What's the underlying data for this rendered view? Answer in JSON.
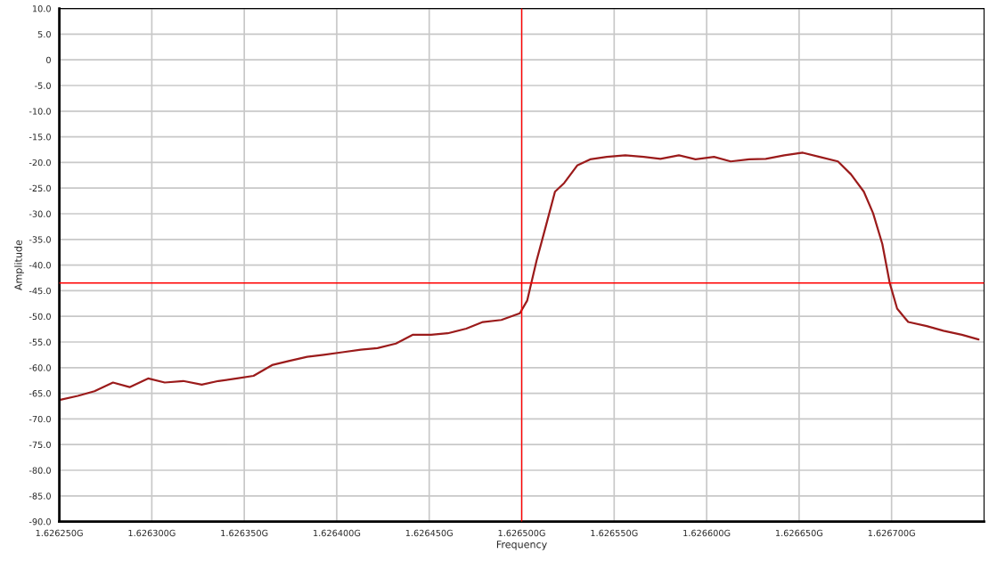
{
  "chart_data": {
    "type": "line",
    "xlabel": "Frequency",
    "ylabel": "Amplitude",
    "x": [
      1.62625,
      1.62626,
      1.626269,
      1.626279,
      1.626288,
      1.626298,
      1.626307,
      1.626317,
      1.626327,
      1.626336,
      1.626346,
      1.626355,
      1.626365,
      1.626374,
      1.626384,
      1.626393,
      1.626403,
      1.626413,
      1.626422,
      1.626432,
      1.626441,
      1.626451,
      1.62646,
      1.62647,
      1.626479,
      1.626489,
      1.626499,
      1.626503,
      1.626508,
      1.626513,
      1.626518,
      1.626523,
      1.62653,
      1.626537,
      1.626546,
      1.626556,
      1.626566,
      1.626575,
      1.626585,
      1.626594,
      1.626604,
      1.626613,
      1.626623,
      1.626632,
      1.626642,
      1.626652,
      1.626661,
      1.626671,
      1.626678,
      1.626685,
      1.62669,
      1.626695,
      1.626699,
      1.626703,
      1.626709,
      1.626719,
      1.626728,
      1.626738,
      1.626747
    ],
    "series": [
      {
        "color": "#9b1b1b",
        "values": [
          -66.3,
          -65.5,
          -64.6,
          -62.9,
          -63.8,
          -62.1,
          -62.9,
          -62.6,
          -63.3,
          -62.6,
          -62.1,
          -61.6,
          -59.5,
          -58.7,
          -57.9,
          -57.5,
          -57.0,
          -56.5,
          -56.2,
          -55.3,
          -53.6,
          -53.6,
          -53.3,
          -52.4,
          -51.1,
          -50.7,
          -49.4,
          -46.9,
          -39.2,
          -32.5,
          -25.7,
          -24.0,
          -20.6,
          -19.4,
          -18.9,
          -18.6,
          -18.9,
          -19.3,
          -18.6,
          -19.4,
          -18.9,
          -19.8,
          -19.4,
          -19.3,
          -18.6,
          -18.1,
          -18.9,
          -19.8,
          -22.3,
          -25.7,
          -29.9,
          -35.9,
          -43.5,
          -48.5,
          -51.1,
          -51.9,
          -52.8,
          -53.6,
          -54.5
        ]
      }
    ],
    "xlim": [
      1.62625,
      1.62675
    ],
    "xticks": [
      {
        "value": 1.62625,
        "label": "1.626250G"
      },
      {
        "value": 1.6263,
        "label": "1.626300G"
      },
      {
        "value": 1.62635,
        "label": "1.626350G"
      },
      {
        "value": 1.6264,
        "label": "1.626400G"
      },
      {
        "value": 1.62645,
        "label": "1.626450G"
      },
      {
        "value": 1.6265,
        "label": "1.626500G"
      },
      {
        "value": 1.62655,
        "label": "1.626550G"
      },
      {
        "value": 1.6266,
        "label": "1.626600G"
      },
      {
        "value": 1.62665,
        "label": "1.626650G"
      },
      {
        "value": 1.6267,
        "label": "1.626700G"
      }
    ],
    "ylim": [
      -90,
      10
    ],
    "yticks": [
      {
        "value": 10,
        "label": "10.0"
      },
      {
        "value": 5,
        "label": "5.0"
      },
      0,
      {
        "value": -5,
        "label": "-5.0"
      },
      {
        "value": -10,
        "label": "-10.0"
      },
      {
        "value": -15,
        "label": "-15.0"
      },
      {
        "value": -20,
        "label": "-20.0"
      },
      {
        "value": -25,
        "label": "-25.0"
      },
      {
        "value": -30,
        "label": "-30.0"
      },
      {
        "value": -35,
        "label": "-35.0"
      },
      {
        "value": -40,
        "label": "-40.0"
      },
      {
        "value": -45,
        "label": "-45.0"
      },
      {
        "value": -50,
        "label": "-50.0"
      },
      {
        "value": -55,
        "label": "-55.0"
      },
      {
        "value": -60,
        "label": "-60.0"
      },
      {
        "value": -65,
        "label": "-65.0"
      },
      {
        "value": -70,
        "label": "-70.0"
      },
      {
        "value": -75,
        "label": "-75.0"
      },
      {
        "value": -80,
        "label": "-80.0"
      },
      {
        "value": -85,
        "label": "-85.0"
      },
      {
        "value": -90,
        "label": "-90.0"
      }
    ],
    "ref_lines": [
      {
        "axis": "x",
        "value": 1.6265,
        "color": "#ff0000"
      },
      {
        "axis": "y",
        "value": -43.5,
        "color": "#ff0000"
      }
    ],
    "grid": true,
    "legend": false
  }
}
